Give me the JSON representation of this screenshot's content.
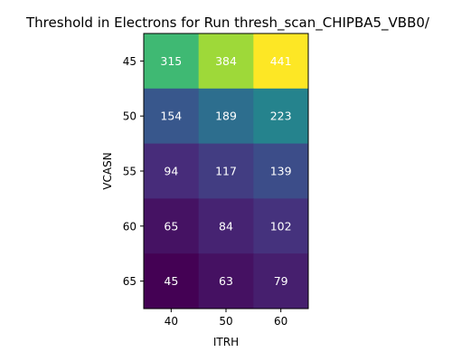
{
  "chart_data": {
    "type": "heatmap",
    "title": "Threshold in Electrons for Run thresh_scan_CHIPBA5_VBB0/",
    "xlabel": "ITRH",
    "ylabel": "VCASN",
    "x_categories": [
      "40",
      "50",
      "60"
    ],
    "y_categories": [
      "45",
      "50",
      "55",
      "60",
      "65"
    ],
    "values": [
      [
        315,
        384,
        441
      ],
      [
        154,
        189,
        223
      ],
      [
        94,
        117,
        139
      ],
      [
        65,
        84,
        102
      ],
      [
        45,
        63,
        79
      ]
    ],
    "value_range": [
      45,
      441
    ],
    "colormap": "viridis",
    "grid": false
  }
}
